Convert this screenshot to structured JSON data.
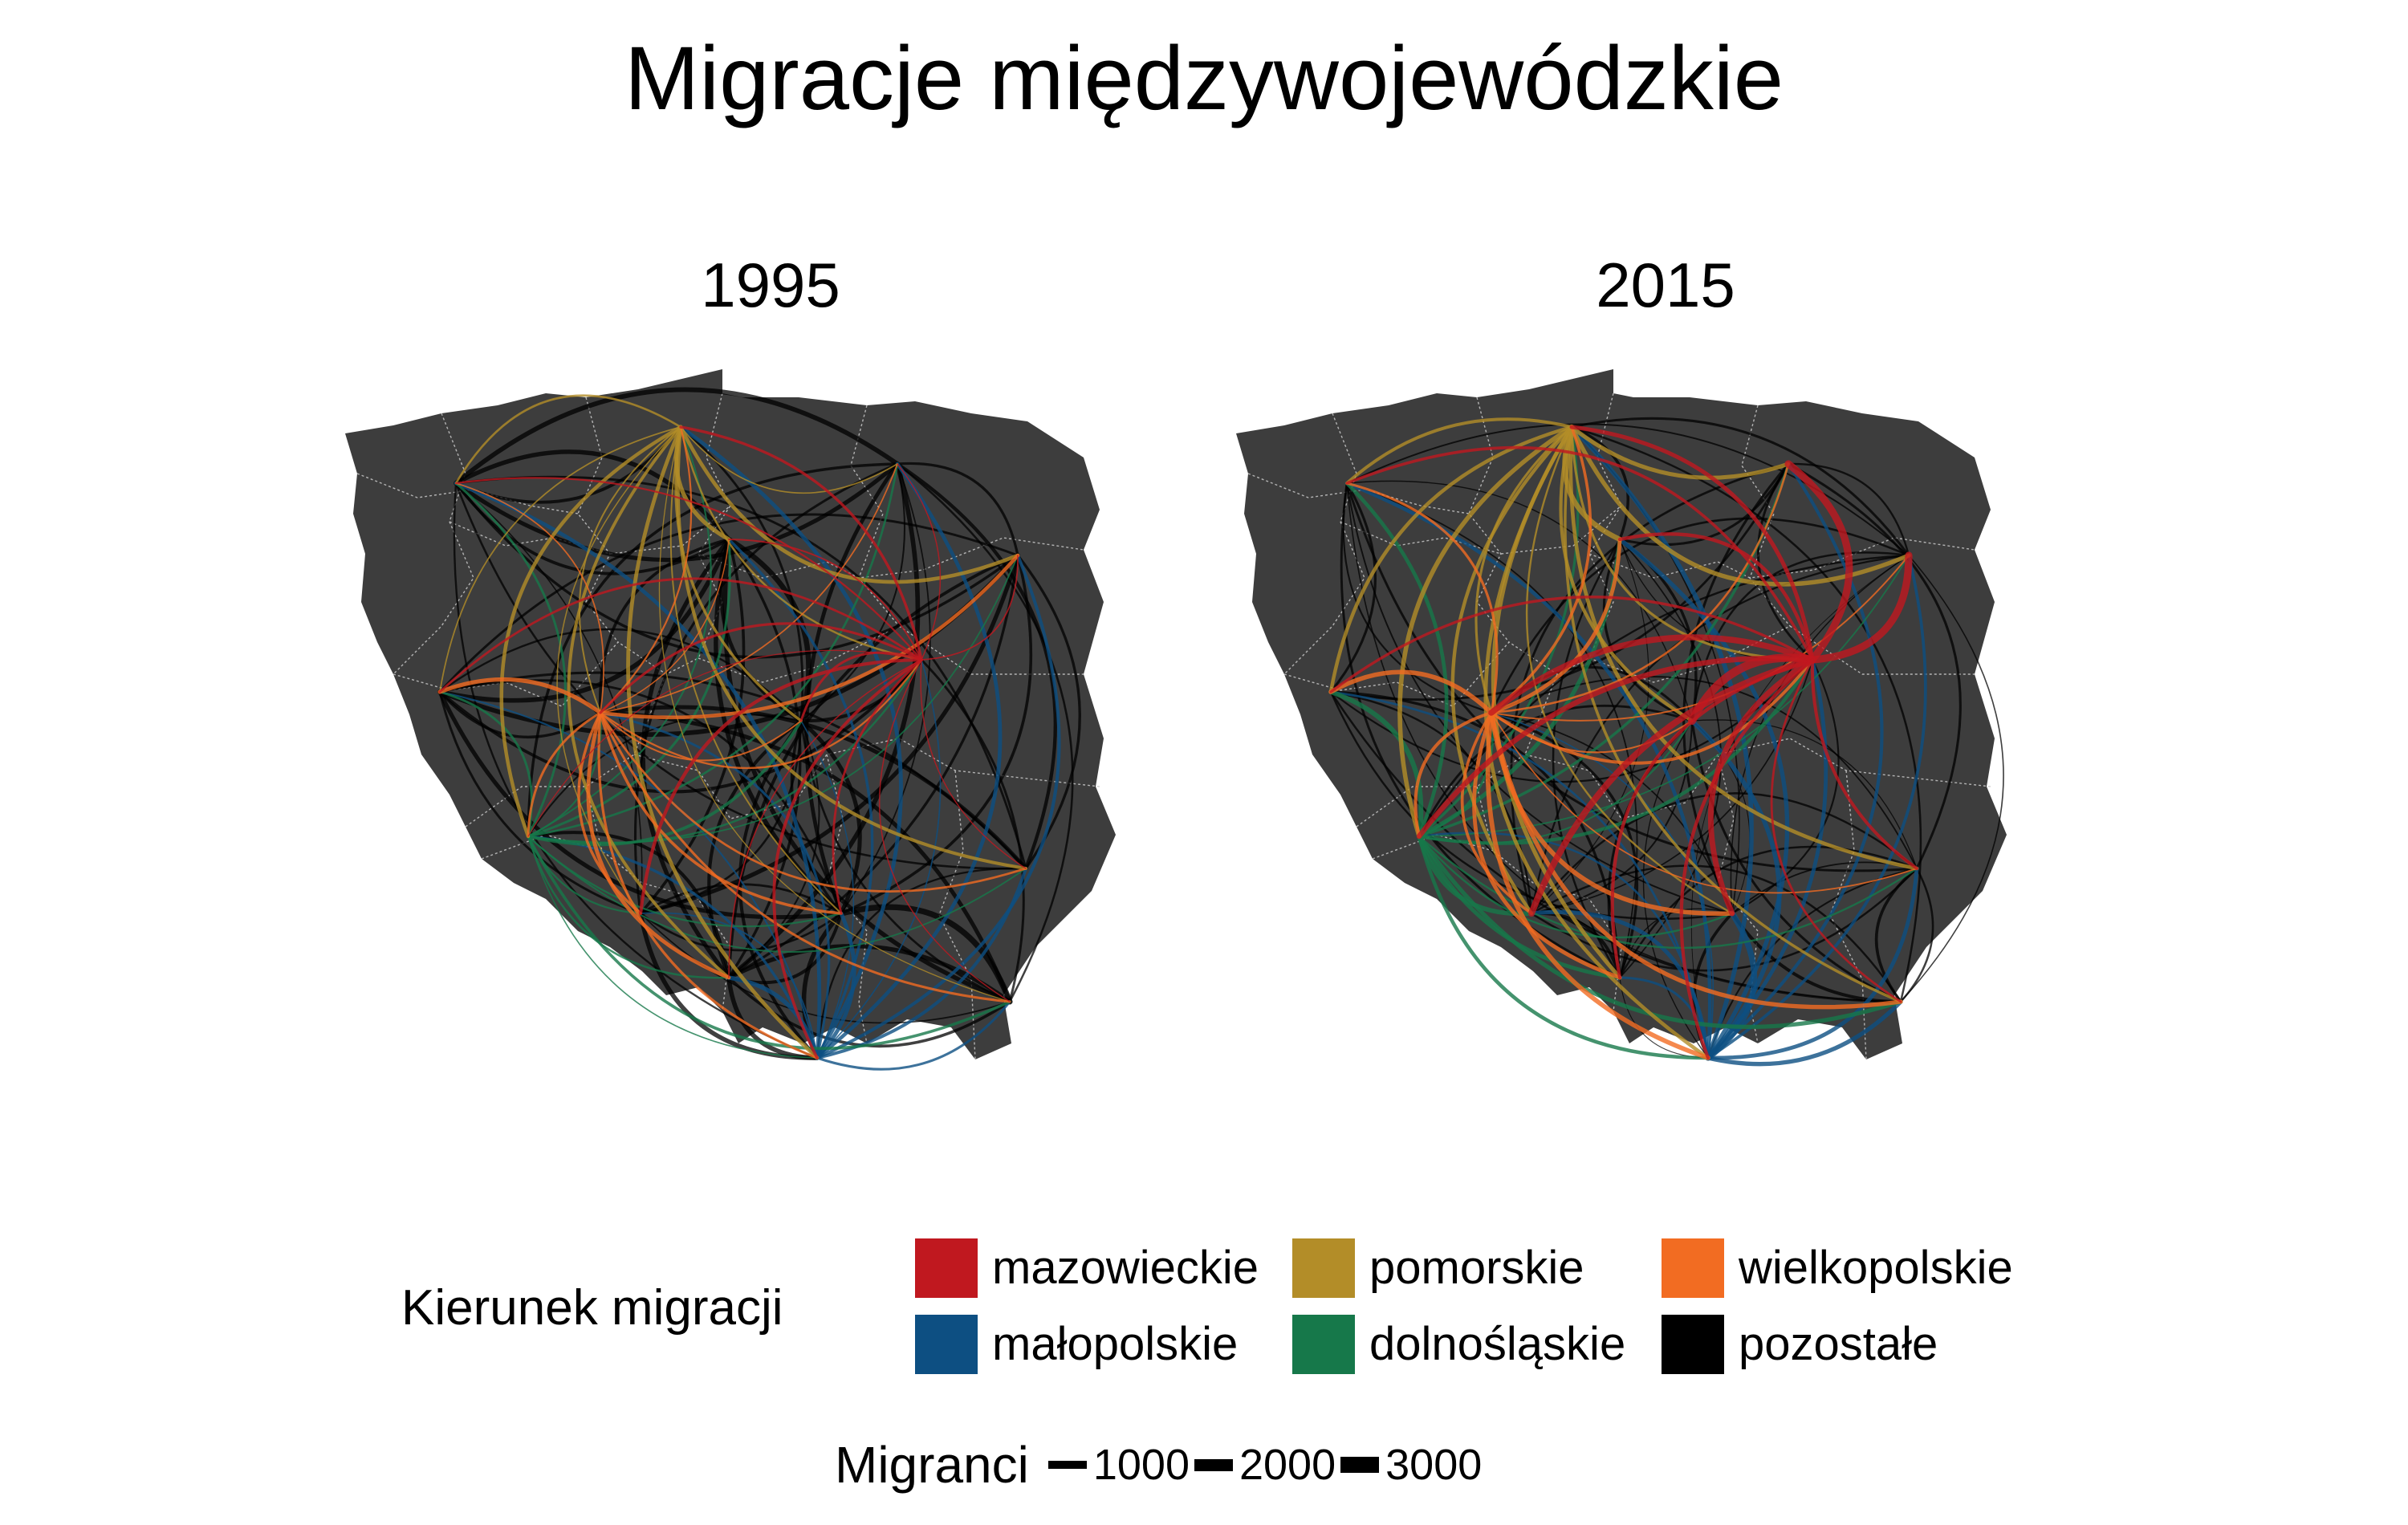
{
  "title": "Migracje międzywojewódzkie",
  "chart_data": {
    "type": "flow-map",
    "panels": [
      {
        "label": "1995",
        "emphasis": {
          "mazowieckie": 0.9,
          "małopolskie": 1.0,
          "pomorskie": 1.0,
          "wielkopolskie": 1.0,
          "dolnośląskie": 0.8,
          "pozostałe": 1.6
        }
      },
      {
        "label": "2015",
        "emphasis": {
          "mazowieckie": 1.8,
          "małopolskie": 1.2,
          "pomorskie": 1.3,
          "wielkopolskie": 1.2,
          "dolnośląskie": 1.2,
          "pozostałe": 0.9
        }
      }
    ],
    "region_color_legend": {
      "title": "Kierunek migracji",
      "entries": [
        {
          "label": "mazowieckie",
          "color": "#c0181f"
        },
        {
          "label": "pomorskie",
          "color": "#b38d28"
        },
        {
          "label": "wielkopolskie",
          "color": "#f26c22"
        },
        {
          "label": "małopolskie",
          "color": "#0d4f82"
        },
        {
          "label": "dolnośląskie",
          "color": "#16784a"
        },
        {
          "label": "pozostałe",
          "color": "#000000"
        }
      ]
    },
    "size_legend": {
      "title": "Migranci",
      "values": [
        1000,
        2000,
        3000
      ],
      "labels": [
        "1000",
        "2000",
        "3000"
      ]
    },
    "map_fill": "#3d3d3d",
    "border_color": "#c8c8c8"
  }
}
